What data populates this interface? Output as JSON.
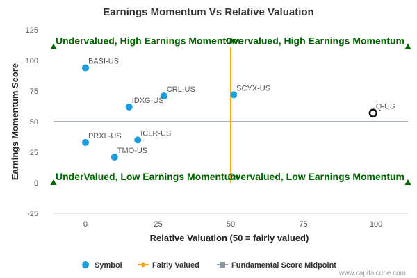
{
  "chart_data": {
    "type": "scatter",
    "title": "Earnings Momentum Vs Relative Valuation",
    "xlabel": "Relative Valuation (50 = fairly valued)",
    "ylabel": "Earnings Momentum Score",
    "xlim": [
      -11,
      111
    ],
    "ylim": [
      -25,
      125
    ],
    "xticks": [
      0,
      25,
      50,
      75,
      100
    ],
    "yticks": [
      -25,
      0,
      25,
      50,
      75,
      100,
      125
    ],
    "points": [
      {
        "label": "BASI-US",
        "x": 0,
        "y": 94,
        "highlight": false
      },
      {
        "label": "CRL-US",
        "x": 27,
        "y": 71,
        "highlight": false
      },
      {
        "label": "IDXG-US",
        "x": 15,
        "y": 62,
        "highlight": false
      },
      {
        "label": "SCYX-US",
        "x": 51,
        "y": 72,
        "highlight": false
      },
      {
        "label": "Q-US",
        "x": 99,
        "y": 57,
        "highlight": true
      },
      {
        "label": "PRXL-US",
        "x": 0,
        "y": 33,
        "highlight": false
      },
      {
        "label": "ICLR-US",
        "x": 18,
        "y": 35,
        "highlight": false
      },
      {
        "label": "TMO-US",
        "x": 10,
        "y": 21,
        "highlight": false
      }
    ],
    "fairly_valued_x": 50,
    "score_midpoint_y": 50,
    "quadrant_labels": {
      "top_left": "Undervalued, High Earnings Momentum",
      "top_right": "Overvalued, High Earnings Momentum",
      "bottom_left": "UnderValued, Low Earnings Momentum",
      "bottom_right": "Overvalued, Low Earnings Momentum"
    },
    "legend": {
      "placement": "bottom",
      "items": [
        {
          "name": "Symbol",
          "color": "#1a9be0"
        },
        {
          "name": "Fairly Valued",
          "color": "#f5a623"
        },
        {
          "name": "Fundamental Score Midpoint",
          "color": "#8c96a0"
        }
      ]
    },
    "colors": {
      "point": "#1a9be0",
      "highlight_stroke": "#111111",
      "fair_line": "#f5a623",
      "mid_line": "#8c96a0",
      "quadrant_text": "#006400",
      "marker": "#006400"
    },
    "grid": false
  },
  "credit": "www.capitalcube.com"
}
